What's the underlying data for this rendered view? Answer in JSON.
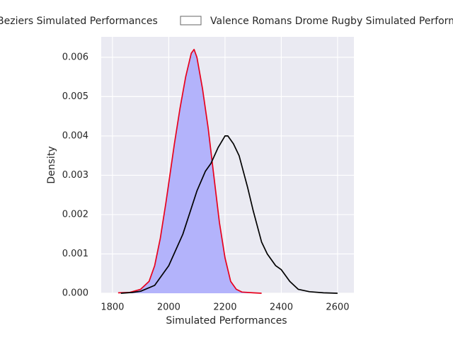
{
  "chart_data": {
    "type": "line",
    "xlabel": "Simulated Performances",
    "ylabel": "Density",
    "xlim": [
      1760,
      2658
    ],
    "ylim": [
      0,
      0.00652
    ],
    "xticks": [
      1800,
      2000,
      2200,
      2400,
      2600
    ],
    "yticks": [
      {
        "value": 0,
        "label": "0.000"
      },
      {
        "value": 0.001,
        "label": "0.001"
      },
      {
        "value": 0.002,
        "label": "0.002"
      },
      {
        "value": 0.003,
        "label": "0.003"
      },
      {
        "value": 0.004,
        "label": "0.004"
      },
      {
        "value": 0.005,
        "label": "0.005"
      },
      {
        "value": 0.006,
        "label": "0.006"
      }
    ],
    "grid": true,
    "legend": "top",
    "series": [
      {
        "name": "Beziers Simulated Performances",
        "color": "#e8001c",
        "fill": "#b3b3fb",
        "x": [
          1820,
          1860,
          1900,
          1930,
          1950,
          1970,
          1990,
          2000,
          2020,
          2040,
          2060,
          2080,
          2090,
          2100,
          2120,
          2140,
          2160,
          2180,
          2200,
          2220,
          2240,
          2260,
          2300,
          2330
        ],
        "values": [
          1e-05,
          2e-05,
          0.0001,
          0.0003,
          0.0007,
          0.0014,
          0.0023,
          0.0028,
          0.0038,
          0.0047,
          0.0055,
          0.0061,
          0.0062,
          0.006,
          0.0052,
          0.0042,
          0.003,
          0.0018,
          0.0009,
          0.0003,
          0.0001,
          3e-05,
          1e-05,
          0
        ]
      },
      {
        "name": "Valence Romans Drome Rugby Simulated Perform",
        "color": "#000000",
        "fill": null,
        "x": [
          1830,
          1870,
          1900,
          1950,
          2000,
          2050,
          2100,
          2130,
          2150,
          2175,
          2200,
          2210,
          2230,
          2250,
          2280,
          2300,
          2330,
          2350,
          2380,
          2400,
          2430,
          2460,
          2500,
          2550,
          2600
        ],
        "values": [
          0,
          2e-05,
          5e-05,
          0.0002,
          0.0007,
          0.0015,
          0.0026,
          0.0031,
          0.0033,
          0.0037,
          0.004,
          0.004,
          0.0038,
          0.0035,
          0.0027,
          0.0021,
          0.0013,
          0.001,
          0.0007,
          0.0006,
          0.0003,
          0.0001,
          4e-05,
          1e-05,
          0
        ]
      }
    ]
  }
}
